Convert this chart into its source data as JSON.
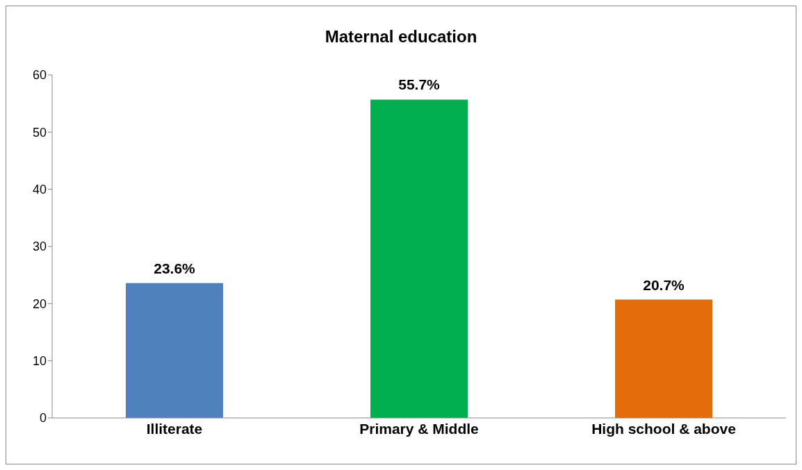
{
  "chart_data": {
    "type": "bar",
    "title": "Maternal education",
    "categories": [
      "Illiterate",
      "Primary & Middle",
      "High school & above"
    ],
    "values": [
      23.6,
      55.7,
      20.7
    ],
    "colors": [
      "#4f81bd",
      "#00b050",
      "#e46c0a"
    ],
    "value_labels": [
      "23.6%",
      "55.7%",
      "20.7%"
    ],
    "ylim": [
      0,
      60
    ],
    "yticks": [
      0,
      10,
      20,
      30,
      40,
      50,
      60
    ]
  }
}
